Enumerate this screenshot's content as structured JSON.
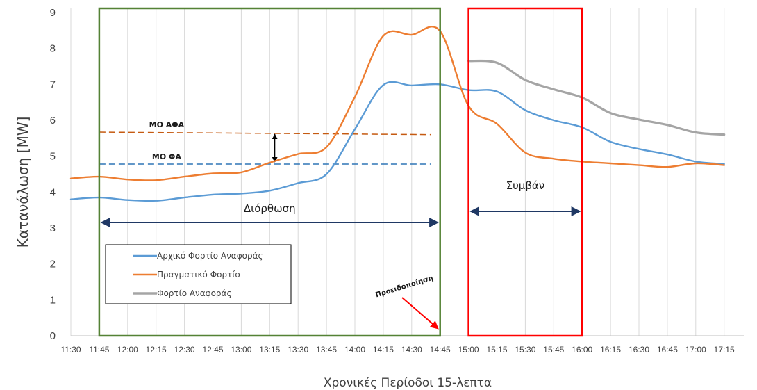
{
  "chart_data": {
    "type": "line",
    "xlabel": "Χρονικές Περίοδοι 15-λεπτα",
    "ylabel": "Κατανάλωση  [MW]",
    "ylim": [
      0,
      9
    ],
    "yticks": [
      0,
      1,
      2,
      3,
      4,
      5,
      6,
      7,
      8,
      9
    ],
    "grid": "vertical",
    "legend_position": "bottom-left",
    "categories": [
      "11:30",
      "11:45",
      "12:00",
      "12:15",
      "12:30",
      "12:45",
      "13:00",
      "13:15",
      "13:30",
      "13:45",
      "14:00",
      "14:15",
      "14:30",
      "14:45",
      "15:00",
      "15:15",
      "15:30",
      "15:45",
      "16:00",
      "16:15",
      "16:30",
      "16:45",
      "17:00",
      "17:15"
    ],
    "series": [
      {
        "name": "Αρχικό Φορτίο Αναφοράς",
        "color": "#5b9bd5",
        "values": [
          3.8,
          3.85,
          3.78,
          3.76,
          3.85,
          3.93,
          3.96,
          4.04,
          4.25,
          4.5,
          5.75,
          6.98,
          6.97,
          7.0,
          6.84,
          6.8,
          6.28,
          6.0,
          5.8,
          5.4,
          5.2,
          5.05,
          4.85,
          4.78
        ]
      },
      {
        "name": "Πραγματικό Φορτίο",
        "color": "#ed7d31",
        "values": [
          4.38,
          4.43,
          4.35,
          4.33,
          4.43,
          4.52,
          4.55,
          4.82,
          5.06,
          5.25,
          6.65,
          8.35,
          8.38,
          8.48,
          6.4,
          5.9,
          5.1,
          4.93,
          4.85,
          4.8,
          4.75,
          4.7,
          4.8,
          4.75
        ]
      },
      {
        "name": "Φορτίο Αναφοράς",
        "color": "#a5a5a5",
        "values": [
          null,
          null,
          null,
          null,
          null,
          null,
          null,
          null,
          null,
          null,
          null,
          null,
          null,
          null,
          7.65,
          7.6,
          7.12,
          6.86,
          6.63,
          6.2,
          6.02,
          5.87,
          5.66,
          5.6
        ]
      }
    ],
    "reference_lines": [
      {
        "label": "ΜΟ ΑΦΑ",
        "color": "#c55a11",
        "from": "11:45",
        "to": "14:40",
        "y_start": 5.67,
        "y_end": 5.6
      },
      {
        "label": "ΜΟ ΦΑ",
        "color": "#2e75b6",
        "from": "11:45",
        "to": "14:40",
        "y": 4.78
      }
    ],
    "annotations": {
      "correction_label": "Διόρθωση",
      "event_label": "Συμβάν",
      "warning_label": "Προειδοποίηση"
    },
    "regions": [
      {
        "name": "correction",
        "from": "11:45",
        "to": "14:45",
        "color": "#548235"
      },
      {
        "name": "event",
        "from": "15:00",
        "to": "16:00",
        "color": "#ff0000"
      }
    ]
  }
}
